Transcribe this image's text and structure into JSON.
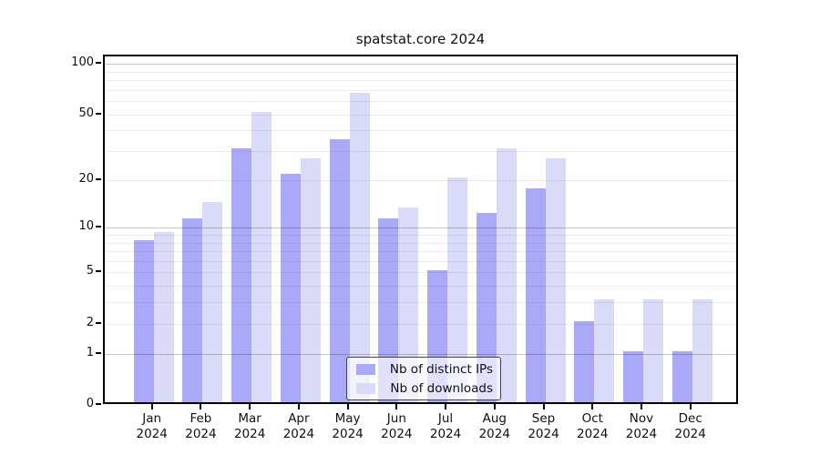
{
  "chart_data": {
    "type": "bar",
    "title": "spatstat.core 2024",
    "categories": [
      "Jan",
      "Feb",
      "Mar",
      "Apr",
      "May",
      "Jun",
      "Jul",
      "Aug",
      "Sep",
      "Oct",
      "Nov",
      "Dec"
    ],
    "year_label": "2024",
    "series": [
      {
        "name": "Nb of distinct IPs",
        "color": "#a9a9f8",
        "values": [
          8,
          11,
          30,
          21,
          34,
          11,
          5,
          12,
          17,
          2,
          1,
          1
        ]
      },
      {
        "name": "Nb of downloads",
        "color": "#dadaf9",
        "values": [
          9,
          14,
          50,
          26,
          65,
          13,
          20,
          30,
          26,
          3,
          3,
          3
        ]
      }
    ],
    "y_axis": {
      "scale": "log10(1+x)",
      "min": 0,
      "max": 100,
      "tick_labels": [
        0,
        1,
        2,
        5,
        10,
        20,
        50,
        100
      ],
      "major_gridlines": [
        1,
        10,
        100
      ],
      "minor_gridlines": [
        2,
        3,
        4,
        5,
        6,
        7,
        8,
        9,
        20,
        30,
        40,
        50,
        60,
        70,
        80,
        90
      ]
    },
    "grid": true,
    "legend_position": "bottom-center",
    "colors": {
      "axis": "#000000",
      "text": "#111111"
    }
  }
}
